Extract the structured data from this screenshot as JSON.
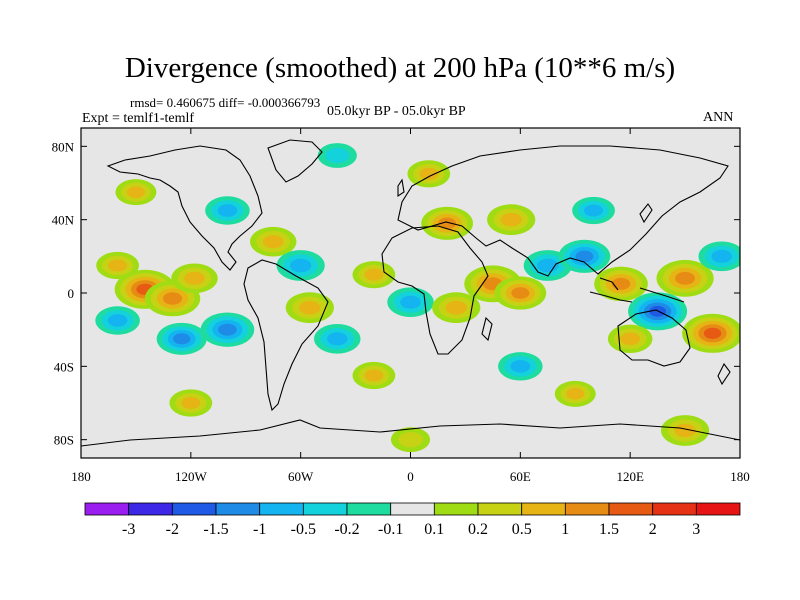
{
  "title": "Divergence (smoothed) at 200 hPa (10**6 m/s)",
  "stats": "rmsd= 0.460675 diff= -0.000366793",
  "experiment": "Expt = temlf1-temlf",
  "period": "05.0kyr BP - 05.0kyr BP",
  "season": "ANN",
  "lat_ticks": [
    "80N",
    "40N",
    "0",
    "40S",
    "80S"
  ],
  "lat_values": [
    80,
    40,
    0,
    -40,
    -80
  ],
  "lon_ticks": [
    "180",
    "120W",
    "60W",
    "0",
    "60E",
    "120E",
    "180"
  ],
  "lon_values": [
    -180,
    -120,
    -60,
    0,
    60,
    120,
    180
  ],
  "colorbar": {
    "labels": [
      "-3",
      "-2",
      "-1.5",
      "-1",
      "-0.5",
      "-0.2",
      "-0.1",
      "0.1",
      "0.2",
      "0.5",
      "1",
      "1.5",
      "2",
      "3"
    ],
    "colors": [
      "#9a1ef0",
      "#3c28e6",
      "#1e5ae6",
      "#1e8ce6",
      "#14b4f0",
      "#14d2dc",
      "#1edca0",
      "#e6e6e6",
      "#a0dc14",
      "#c8d214",
      "#e6b414",
      "#e68c14",
      "#e65a14",
      "#e63214",
      "#e61414"
    ]
  },
  "map_data": {
    "lat_range": [
      -90,
      90
    ],
    "lon_range": [
      -180,
      180
    ],
    "features": [
      {
        "lon": -145,
        "lat": 2,
        "value": 1.6
      },
      {
        "lon": -130,
        "lat": -3,
        "value": 1.3
      },
      {
        "lon": -118,
        "lat": 8,
        "value": 0.8
      },
      {
        "lon": -160,
        "lat": 15,
        "value": 0.6
      },
      {
        "lon": -100,
        "lat": -20,
        "value": -1.2
      },
      {
        "lon": -125,
        "lat": -25,
        "value": -1.0
      },
      {
        "lon": -160,
        "lat": -15,
        "value": -0.7
      },
      {
        "lon": -75,
        "lat": 28,
        "value": 0.8
      },
      {
        "lon": -60,
        "lat": 15,
        "value": -0.9
      },
      {
        "lon": -55,
        "lat": -8,
        "value": 0.9
      },
      {
        "lon": -40,
        "lat": -25,
        "value": -0.8
      },
      {
        "lon": -20,
        "lat": 10,
        "value": 0.6
      },
      {
        "lon": 0,
        "lat": -5,
        "value": -0.8
      },
      {
        "lon": 25,
        "lat": -8,
        "value": 0.9
      },
      {
        "lon": 45,
        "lat": 5,
        "value": 1.4
      },
      {
        "lon": 60,
        "lat": 0,
        "value": 1.1
      },
      {
        "lon": 75,
        "lat": 15,
        "value": -0.9
      },
      {
        "lon": 95,
        "lat": 20,
        "value": -1.1
      },
      {
        "lon": 115,
        "lat": 5,
        "value": 1.2
      },
      {
        "lon": 135,
        "lat": -10,
        "value": -1.5
      },
      {
        "lon": 150,
        "lat": 8,
        "value": 1.4
      },
      {
        "lon": 165,
        "lat": -22,
        "value": 1.6
      },
      {
        "lon": 120,
        "lat": -25,
        "value": 0.7
      },
      {
        "lon": 170,
        "lat": 20,
        "value": -0.8
      },
      {
        "lon": 20,
        "lat": 38,
        "value": 1.1
      },
      {
        "lon": 55,
        "lat": 40,
        "value": 0.9
      },
      {
        "lon": 100,
        "lat": 45,
        "value": -0.6
      },
      {
        "lon": -100,
        "lat": 45,
        "value": -0.7
      },
      {
        "lon": 10,
        "lat": 65,
        "value": 0.6
      },
      {
        "lon": -150,
        "lat": 55,
        "value": 0.5
      },
      {
        "lon": 60,
        "lat": -40,
        "value": -0.7
      },
      {
        "lon": -20,
        "lat": -45,
        "value": 0.6
      },
      {
        "lon": 90,
        "lat": -55,
        "value": 0.5
      },
      {
        "lon": -120,
        "lat": -60,
        "value": 0.6
      },
      {
        "lon": 150,
        "lat": -75,
        "value": 0.9
      },
      {
        "lon": 0,
        "lat": -80,
        "value": 0.4
      },
      {
        "lon": -40,
        "lat": 75,
        "value": -0.4
      }
    ]
  }
}
